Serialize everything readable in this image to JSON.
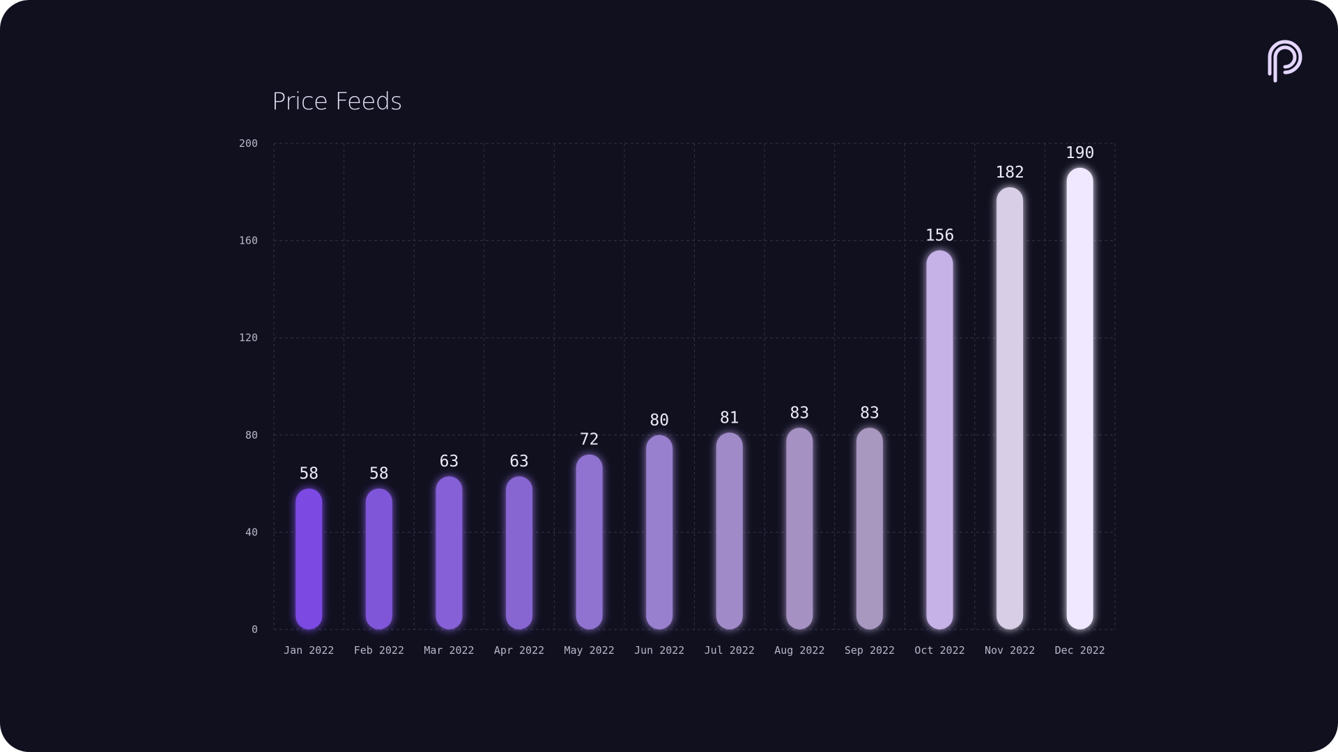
{
  "title": "Price Feeds",
  "logo_icon": "pyth-logo-icon",
  "colors": {
    "background": "#10101f",
    "grid": "#3a3a4f",
    "text": "#e9e3fa"
  },
  "chart_data": {
    "type": "bar",
    "title": "Price Feeds",
    "xlabel": "",
    "ylabel": "",
    "ylim": [
      0,
      200
    ],
    "yticks": [
      0,
      40,
      80,
      120,
      160,
      200
    ],
    "grid": true,
    "categories": [
      "Jan 2022",
      "Feb 2022",
      "Mar 2022",
      "Apr 2022",
      "May 2022",
      "Jun 2022",
      "Jul 2022",
      "Aug 2022",
      "Sep 2022",
      "Oct 2022",
      "Nov 2022",
      "Dec 2022"
    ],
    "values": [
      58,
      58,
      63,
      63,
      72,
      80,
      81,
      83,
      83,
      156,
      182,
      190
    ],
    "bar_colors": [
      "#7c4ae2",
      "#8056d8",
      "#8660d6",
      "#8866d2",
      "#9073d0",
      "#9980cf",
      "#a08ac8",
      "#a591c2",
      "#a897bf",
      "#c6b2e6",
      "#d8cfe6",
      "#efe8ff"
    ]
  }
}
